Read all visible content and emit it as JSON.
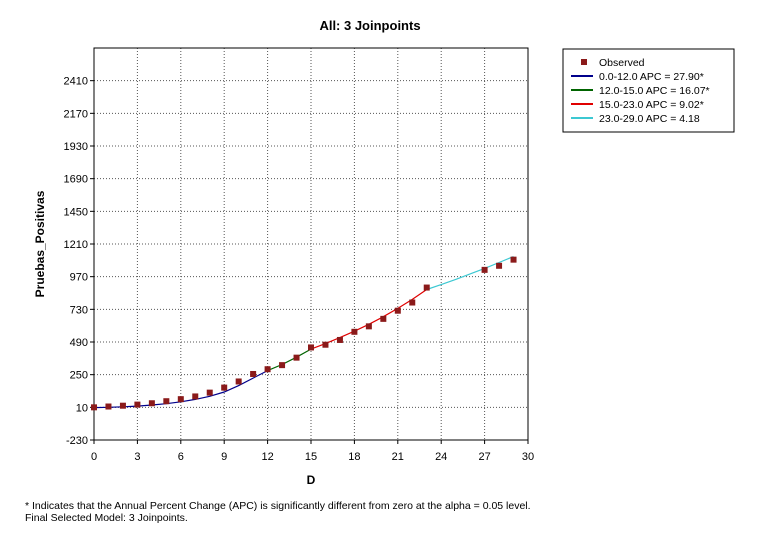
{
  "chart_data": {
    "type": "line",
    "title": "All: 3 Joinpoints",
    "xlabel": "D",
    "ylabel": "Pruebas_Positivas",
    "xlim": [
      0,
      30
    ],
    "ylim": [
      -230,
      2650
    ],
    "x_ticks": [
      0,
      3,
      6,
      9,
      12,
      15,
      18,
      21,
      24,
      27,
      30
    ],
    "y_ticks": [
      -230,
      10,
      250,
      490,
      730,
      970,
      1210,
      1450,
      1690,
      1930,
      2170,
      2410
    ],
    "grid": true,
    "legend_position": "right",
    "observed": {
      "name": "Observed",
      "color": "#8b1a1a",
      "x": [
        0,
        1,
        2,
        3,
        4,
        5,
        6,
        7,
        8,
        9,
        10,
        11,
        12,
        13,
        14,
        15,
        16,
        17,
        18,
        19,
        20,
        21,
        22,
        23,
        27,
        28,
        29
      ],
      "y": [
        10,
        16,
        22,
        30,
        40,
        55,
        70,
        90,
        118,
        155,
        200,
        255,
        290,
        320,
        375,
        450,
        470,
        505,
        565,
        605,
        660,
        720,
        780,
        890,
        1020,
        1050,
        1095
      ]
    },
    "series": [
      {
        "name": "0.0-12.0 APC  = 27.90*",
        "color": "#00008b",
        "x": [
          0,
          1,
          2,
          3,
          4,
          5,
          6,
          7,
          8,
          9,
          10,
          11,
          12
        ],
        "y": [
          8,
          10,
          14,
          19,
          27,
          37,
          51,
          68,
          91,
          123,
          170,
          225,
          280
        ]
      },
      {
        "name": "12.0-15.0 APC  = 16.07*",
        "color": "#006400",
        "x": [
          12,
          13,
          14,
          15
        ],
        "y": [
          280,
          325,
          378,
          438
        ]
      },
      {
        "name": "15.0-23.0 APC  =  9.02*",
        "color": "#e00000",
        "x": [
          15,
          16,
          17,
          18,
          19,
          20,
          21,
          22,
          23
        ],
        "y": [
          438,
          478,
          522,
          569,
          620,
          676,
          737,
          803,
          876
        ]
      },
      {
        "name": "23.0-29.0 APC  =  4.18",
        "color": "#3cc8d2",
        "x": [
          23,
          24,
          25,
          26,
          27,
          28,
          29
        ],
        "y": [
          876,
          912,
          950,
          990,
          1031,
          1074,
          1118
        ]
      }
    ]
  },
  "footnote": {
    "line1": "* Indicates that the Annual Percent Change (APC) is significantly different from zero at the alpha = 0.05 level.",
    "line2": "Final Selected Model: 3 Joinpoints."
  }
}
